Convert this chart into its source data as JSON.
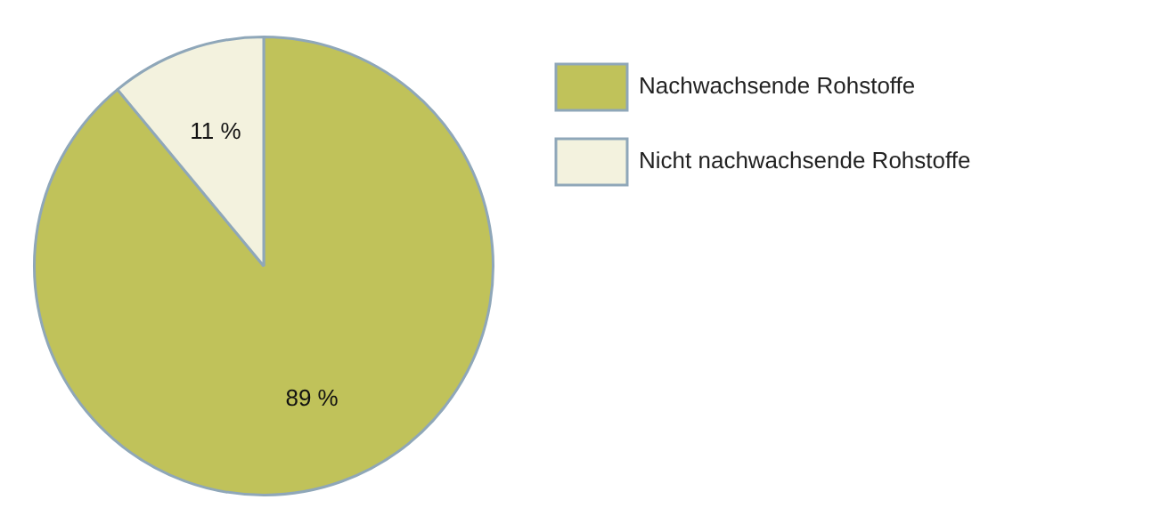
{
  "chart_data": {
    "type": "pie",
    "categories": [
      "Nachwachsende Rohstoffe",
      "Nicht nachwachsende Rohstoffe"
    ],
    "values": [
      89,
      11
    ],
    "colors": [
      "#c0c25a",
      "#f3f2de"
    ],
    "value_labels": [
      "89 %",
      "11 %"
    ],
    "legend": "top right"
  }
}
